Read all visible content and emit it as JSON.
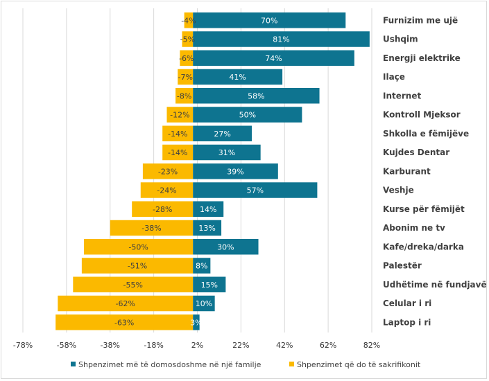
{
  "chart_data": {
    "type": "bar",
    "orientation": "horizontal",
    "categories": [
      "Furnizim me ujë",
      "Ushqim",
      "Energji elektrike",
      "Ilaçe",
      "Internet",
      "Kontroll Mjeksor",
      "Shkolla e fëmijëve",
      "Kujdes Dentar",
      "Karburant",
      "Veshje",
      "Kurse për fëmijët",
      "Abonim ne tv",
      "Kafe/dreka/darka",
      "Palestër",
      "Udhëtime në fundjavë",
      "Celular i ri",
      "Laptop i ri"
    ],
    "series": [
      {
        "name": "Shpenzimet më të domosdoshme në një familje",
        "color": "#0e7490",
        "values": [
          70,
          81,
          74,
          41,
          58,
          50,
          27,
          31,
          39,
          57,
          14,
          13,
          30,
          8,
          15,
          10,
          3
        ],
        "labels": [
          "70%",
          "81%",
          "74%",
          "41%",
          "58%",
          "50%",
          "27%",
          "31%",
          "39%",
          "57%",
          "14%",
          "13%",
          "30%",
          "8%",
          "15%",
          "10%",
          "3%"
        ]
      },
      {
        "name": "Shpenzimet që do të sakrifikonit",
        "color": "#fbb900",
        "values": [
          -4,
          -5,
          -6,
          -7,
          -8,
          -12,
          -14,
          -14,
          -23,
          -24,
          -28,
          -38,
          -50,
          -51,
          -55,
          -62,
          -63
        ],
        "labels": [
          "-4%",
          "-5%",
          "-6%",
          "-7%",
          "-8%",
          "-12%",
          "-14%",
          "-14%",
          "-23%",
          "-24%",
          "-28%",
          "-38%",
          "-50%",
          "-51%",
          "-55%",
          "-62%",
          "-63%"
        ]
      }
    ],
    "x_ticks": [
      -78,
      -58,
      -38,
      -18,
      2,
      22,
      42,
      62,
      82
    ],
    "x_tick_labels": [
      "-78%",
      "-58%",
      "-38%",
      "-18%",
      "2%",
      "22%",
      "42%",
      "62%",
      "82%"
    ],
    "xlim": [
      -78,
      82
    ],
    "grid": "vertical",
    "legend_position": "bottom"
  }
}
